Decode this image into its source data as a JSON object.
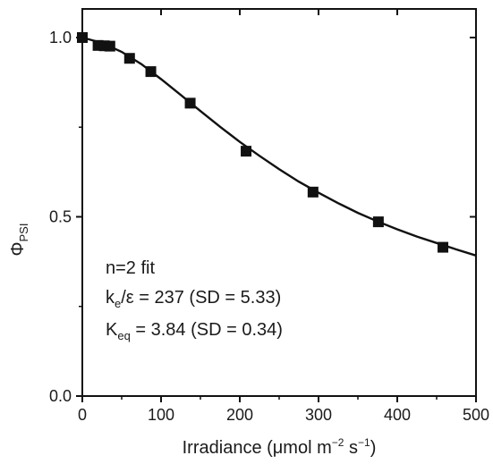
{
  "chart_data": {
    "type": "scatter",
    "xlim": [
      0,
      500
    ],
    "ylim": [
      0.0,
      1.0
    ],
    "x_ticks": [
      0,
      100,
      200,
      300,
      400,
      500
    ],
    "x_tick_labels": [
      "0",
      "100",
      "200",
      "300",
      "400",
      "500"
    ],
    "y_ticks": [
      0.0,
      0.5,
      1.0
    ],
    "y_tick_labels": [
      "0.0",
      "0.5",
      "1.0"
    ],
    "xlabel": {
      "text": "Irradiance (μmol m",
      "exp1": "−2",
      "mid": " s",
      "exp2": "−1",
      "end": ")"
    },
    "ylabel": {
      "main": "Φ",
      "sub": "PSI"
    },
    "grid": false,
    "series": [
      {
        "marker": "square",
        "color": "#111111",
        "x": [
          0,
          20,
          28,
          35,
          60,
          87,
          137,
          208,
          293,
          376,
          458
        ],
        "y": [
          1.0,
          0.978,
          0.977,
          0.976,
          0.942,
          0.905,
          0.817,
          0.683,
          0.569,
          0.486,
          0.415
        ]
      },
      {
        "style": "line",
        "color": "#111111",
        "x": [
          0,
          25,
          50,
          75,
          100,
          125,
          150,
          175,
          200,
          225,
          250,
          275,
          300,
          325,
          350,
          375,
          400,
          425,
          450,
          475,
          500
        ],
        "y": [
          1.0,
          0.985,
          0.96,
          0.926,
          0.884,
          0.84,
          0.795,
          0.751,
          0.709,
          0.67,
          0.633,
          0.598,
          0.567,
          0.538,
          0.511,
          0.487,
          0.465,
          0.445,
          0.427,
          0.409,
          0.392
        ]
      }
    ],
    "annotations": {
      "line1": "n=2 fit",
      "line2_main": "k",
      "line2_sub": "e",
      "line2_rest": "/ε = 237 (SD = 5.33)",
      "line3_main": "K",
      "line3_sub": "eq",
      "line3_rest": " = 3.84 (SD = 0.34)"
    }
  }
}
